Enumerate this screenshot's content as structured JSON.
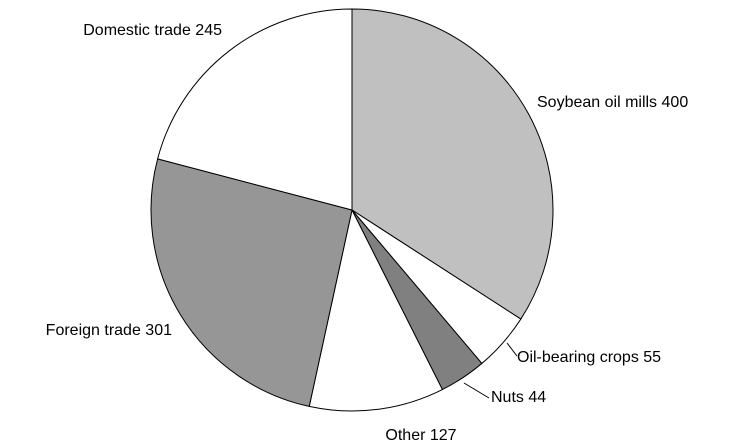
{
  "chart_data": {
    "type": "pie",
    "categories": [
      "Soybean oil mills",
      "Oil-bearing crops",
      "Nuts",
      "Other",
      "Foreign trade",
      "Domestic trade"
    ],
    "values": [
      400,
      55,
      44,
      127,
      301,
      245
    ],
    "colors": [
      "#c0c0c0",
      "#ffffff",
      "#808080",
      "#ffffff",
      "#969696",
      "#ffffff"
    ]
  }
}
